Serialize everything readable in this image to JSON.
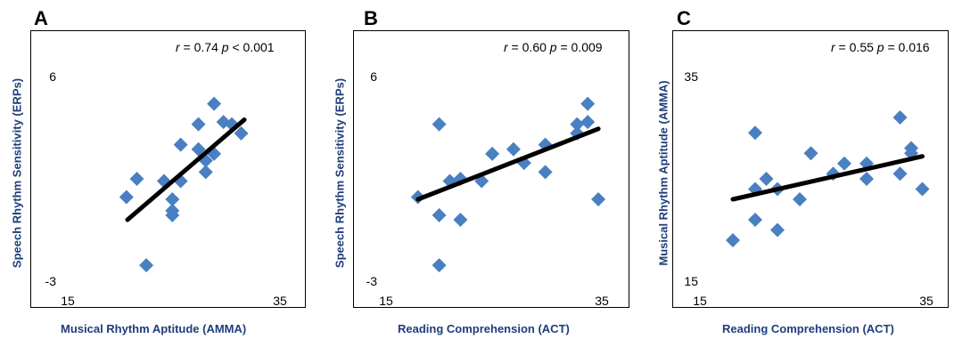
{
  "chart_data": [
    {
      "panel_label": "A",
      "type": "scatter",
      "stat_r": "0.74",
      "stat_p_op": "<",
      "stat_p": "0.001",
      "xlabel": "Musical Rhythm Aptitude (AMMA)",
      "ylabel": "Speech Rhythm Sensitivity (ERPs)",
      "xlim": [
        15,
        35
      ],
      "ylim": [
        -3,
        6
      ],
      "xticks": [
        "15",
        "35"
      ],
      "yticks": [
        "6",
        "-3"
      ],
      "marker_color": "#4a7fc1",
      "line_color": "#000000",
      "points": [
        {
          "x": 19.6,
          "y": 0.7
        },
        {
          "x": 20.6,
          "y": 1.5
        },
        {
          "x": 21.5,
          "y": -2.3
        },
        {
          "x": 23.2,
          "y": 1.4
        },
        {
          "x": 24.0,
          "y": 0.6
        },
        {
          "x": 24.0,
          "y": -0.1
        },
        {
          "x": 24.0,
          "y": 0.1
        },
        {
          "x": 24.8,
          "y": 1.4
        },
        {
          "x": 24.8,
          "y": 3.0
        },
        {
          "x": 26.5,
          "y": 2.8
        },
        {
          "x": 26.5,
          "y": 3.9
        },
        {
          "x": 27.2,
          "y": 2.3
        },
        {
          "x": 27.2,
          "y": 1.8
        },
        {
          "x": 28.0,
          "y": 2.6
        },
        {
          "x": 28.0,
          "y": 4.8
        },
        {
          "x": 28.9,
          "y": 4.0
        },
        {
          "x": 29.7,
          "y": 3.9
        },
        {
          "x": 30.6,
          "y": 3.5
        }
      ],
      "fit": {
        "x0": 19.7,
        "y0": -0.3,
        "x1": 30.9,
        "y1": 4.1
      }
    },
    {
      "panel_label": "B",
      "type": "scatter",
      "stat_r": "0.60",
      "stat_p_op": "=",
      "stat_p": "0.009",
      "xlabel": "Reading Comprehension (ACT)",
      "ylabel": "Speech Rhythm Sensitivity (ERPs)",
      "xlim": [
        15,
        35
      ],
      "ylim": [
        -3,
        6
      ],
      "xticks": [
        "15",
        "35"
      ],
      "yticks": [
        "6",
        "-3"
      ],
      "marker_color": "#4a7fc1",
      "line_color": "#000000",
      "points": [
        {
          "x": 17.0,
          "y": 0.7
        },
        {
          "x": 19.0,
          "y": 3.9
        },
        {
          "x": 19.0,
          "y": -0.1
        },
        {
          "x": 19.0,
          "y": -2.3
        },
        {
          "x": 20.0,
          "y": 1.4
        },
        {
          "x": 21.0,
          "y": 1.5
        },
        {
          "x": 21.0,
          "y": -0.3
        },
        {
          "x": 23.0,
          "y": 1.4
        },
        {
          "x": 24.0,
          "y": 2.6
        },
        {
          "x": 26.0,
          "y": 2.8
        },
        {
          "x": 27.0,
          "y": 2.2
        },
        {
          "x": 29.0,
          "y": 3.0
        },
        {
          "x": 29.0,
          "y": 1.8
        },
        {
          "x": 32.0,
          "y": 3.9
        },
        {
          "x": 32.0,
          "y": 3.5
        },
        {
          "x": 33.0,
          "y": 4.0
        },
        {
          "x": 33.0,
          "y": 4.8
        },
        {
          "x": 34.0,
          "y": 0.6
        }
      ],
      "fit": {
        "x0": 17.0,
        "y0": 0.6,
        "x1": 34.0,
        "y1": 3.7
      }
    },
    {
      "panel_label": "C",
      "type": "scatter",
      "stat_r": "0.55",
      "stat_p_op": "=",
      "stat_p": "0.016",
      "xlabel": "Reading Comprehension (ACT)",
      "ylabel": "Musical Rhythm Aptitude (AMMA)",
      "xlim": [
        15,
        35
      ],
      "ylim": [
        15,
        35
      ],
      "xticks": [
        "15",
        "35"
      ],
      "yticks": [
        "35",
        "15"
      ],
      "marker_color": "#4a7fc1",
      "line_color": "#000000",
      "points": [
        {
          "x": 17.0,
          "y": 19.0
        },
        {
          "x": 19.0,
          "y": 29.5
        },
        {
          "x": 19.0,
          "y": 24.0
        },
        {
          "x": 19.0,
          "y": 21.0
        },
        {
          "x": 20.0,
          "y": 25.0
        },
        {
          "x": 21.0,
          "y": 24.0
        },
        {
          "x": 21.0,
          "y": 20.0
        },
        {
          "x": 23.0,
          "y": 23.0
        },
        {
          "x": 24.0,
          "y": 27.5
        },
        {
          "x": 26.0,
          "y": 25.5
        },
        {
          "x": 27.0,
          "y": 26.5
        },
        {
          "x": 29.0,
          "y": 26.5
        },
        {
          "x": 29.0,
          "y": 25.0
        },
        {
          "x": 32.0,
          "y": 31.0
        },
        {
          "x": 32.0,
          "y": 25.5
        },
        {
          "x": 33.0,
          "y": 28.0
        },
        {
          "x": 33.0,
          "y": 27.5
        },
        {
          "x": 34.0,
          "y": 24.0
        }
      ],
      "fit": {
        "x0": 17.0,
        "y0": 23.0,
        "x1": 34.0,
        "y1": 27.2
      }
    }
  ]
}
